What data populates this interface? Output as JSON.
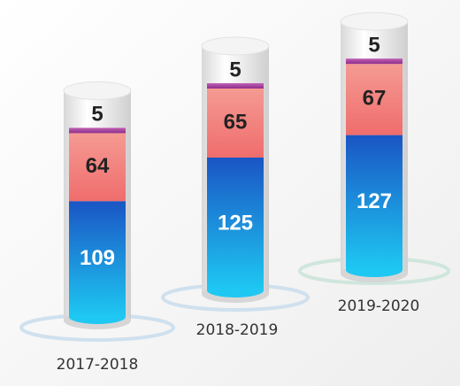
{
  "chart_data": {
    "type": "bar",
    "stacked": true,
    "categories": [
      "2017-2018",
      "2018-2019",
      "2019-2020"
    ],
    "series": [
      {
        "name": null,
        "color": "#1f7fe0",
        "values": [
          109,
          125,
          127
        ]
      },
      {
        "name": null,
        "color": "#f27c78",
        "values": [
          64,
          65,
          67
        ]
      },
      {
        "name": null,
        "color": "#a3409c",
        "values": [
          5,
          5,
          5
        ]
      }
    ]
  }
}
